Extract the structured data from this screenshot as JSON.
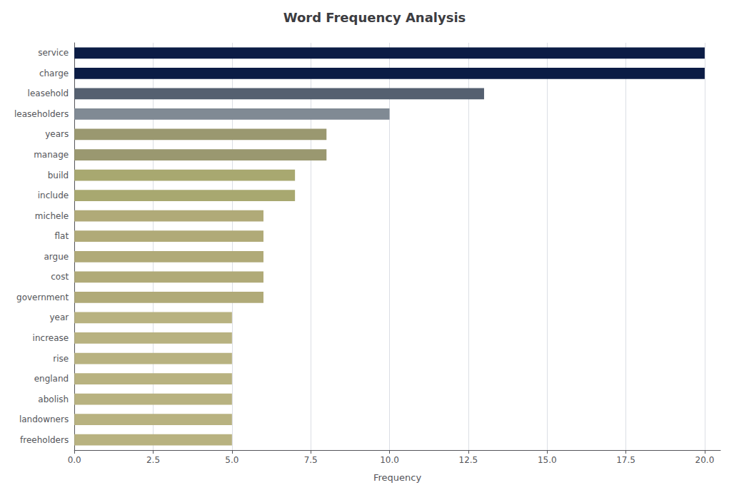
{
  "chart_data": {
    "type": "bar",
    "orientation": "horizontal",
    "title": "Word Frequency Analysis",
    "xlabel": "Frequency",
    "categories": [
      "service",
      "charge",
      "leasehold",
      "leaseholders",
      "years",
      "manage",
      "build",
      "include",
      "michele",
      "flat",
      "argue",
      "cost",
      "government",
      "year",
      "increase",
      "rise",
      "england",
      "abolish",
      "landowners",
      "freeholders"
    ],
    "values": [
      20,
      20,
      13,
      10,
      8,
      8,
      7,
      7,
      6,
      6,
      6,
      6,
      6,
      5,
      5,
      5,
      5,
      5,
      5,
      5
    ],
    "colors": [
      "#0b1c45",
      "#0b1c45",
      "#556070",
      "#808a94",
      "#9a9870",
      "#9a9870",
      "#a8a870",
      "#a8a870",
      "#b0aa78",
      "#b0aa78",
      "#b0aa78",
      "#b0aa78",
      "#b0aa78",
      "#b8b280",
      "#b8b280",
      "#b8b280",
      "#b8b280",
      "#b8b280",
      "#b8b280",
      "#b8b280"
    ],
    "xlim": [
      0,
      20.5
    ],
    "xticks": [
      {
        "value": 0,
        "label": "0.0"
      },
      2.5,
      {
        "value": 5,
        "label": "5.0"
      },
      7.5,
      {
        "value": 10,
        "label": "10.0"
      },
      12.5,
      {
        "value": 15,
        "label": "15.0"
      },
      17.5,
      {
        "value": 20,
        "label": "20.0"
      }
    ],
    "grid": true
  }
}
